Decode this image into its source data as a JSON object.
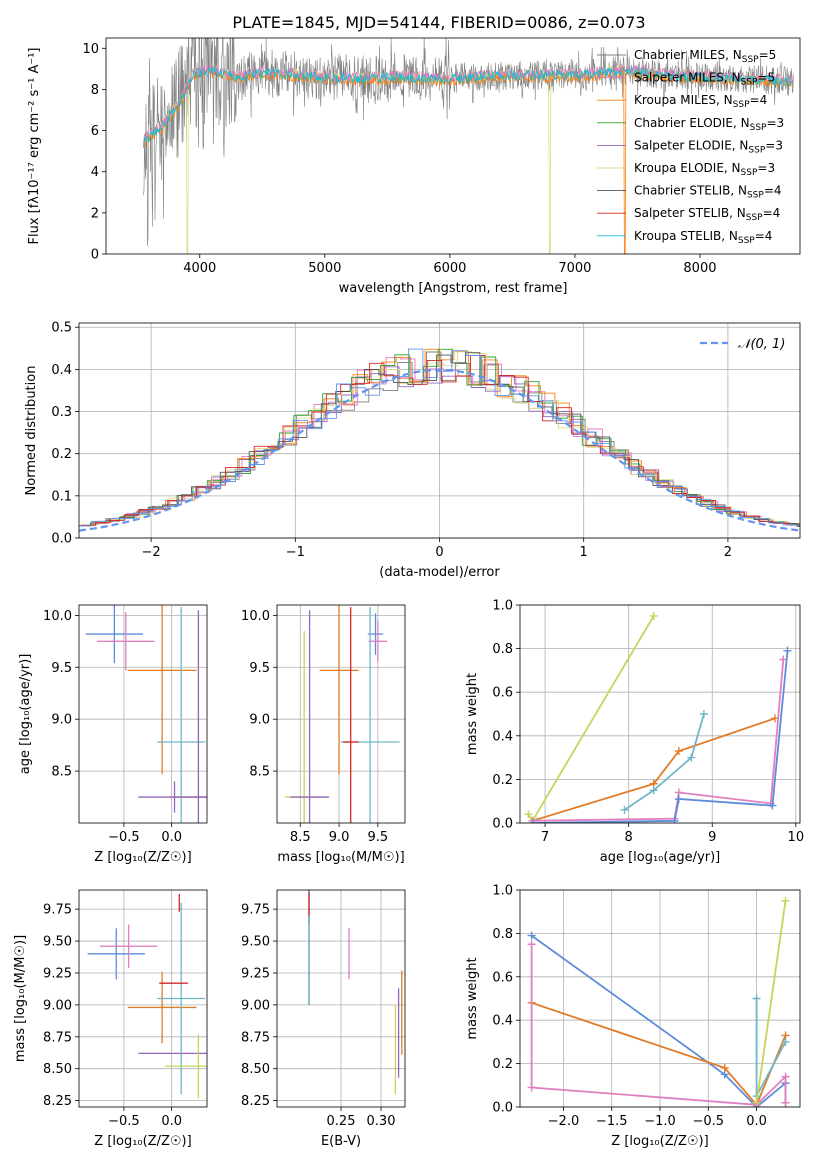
{
  "figure_title": "PLATE=1845, MJD=54144, FIBERID=0086, z=0.073",
  "colors": {
    "chabrier_miles": "#7f7f7f",
    "salpeter_miles": "#e377c2",
    "kroupa_miles": "#ff7f0e",
    "chabrier_elodie": "#2ca02c",
    "salpeter_elodie": "#9467bd",
    "kroupa_elodie": "#dbdb8d",
    "chabrier_stelib": "#555555",
    "salpeter_stelib": "#d62728",
    "kroupa_stelib": "#17becf",
    "normal_curve": "#6495ed",
    "weight_blue": "#5b8ddb",
    "weight_orange": "#e07b28",
    "weight_pink": "#e080c0",
    "weight_teal": "#6fb6c9",
    "weight_yellow": "#c8d35a"
  },
  "chart_data": [
    {
      "id": "spectrum",
      "type": "line",
      "title": "PLATE=1845, MJD=54144, FIBERID=0086, z=0.073",
      "xlabel": "wavelength [Angstrom, rest frame]",
      "ylabel": "Flux [fλ10⁻¹⁷ erg cm⁻² s⁻¹ A⁻¹]",
      "xlim": [
        3250,
        8800
      ],
      "ylim": [
        0,
        10.5
      ],
      "xticks": [
        "4000",
        "5000",
        "6000",
        "7000",
        "8000"
      ],
      "yticks": [
        "0",
        "2",
        "4",
        "6",
        "8",
        "10"
      ],
      "grid": false,
      "legend_position": "right",
      "legend": [
        {
          "label": "Chabrier MILES, N",
          "sub": "SSP",
          "suffix": "=5",
          "color_key": "chabrier_miles"
        },
        {
          "label": "Salpeter MILES, N",
          "sub": "SSP",
          "suffix": "=5",
          "color_key": "salpeter_miles"
        },
        {
          "label": "Kroupa MILES, N",
          "sub": "SSP",
          "suffix": "=4",
          "color_key": "kroupa_miles"
        },
        {
          "label": "Chabrier ELODIE, N",
          "sub": "SSP",
          "suffix": "=3",
          "color_key": "chabrier_elodie"
        },
        {
          "label": "Salpeter ELODIE, N",
          "sub": "SSP",
          "suffix": "=3",
          "color_key": "salpeter_elodie"
        },
        {
          "label": "Kroupa ELODIE, N",
          "sub": "SSP",
          "suffix": "=3",
          "color_key": "kroupa_elodie"
        },
        {
          "label": "Chabrier STELIB, N",
          "sub": "SSP",
          "suffix": "=4",
          "color_key": "chabrier_stelib"
        },
        {
          "label": "Salpeter STELIB, N",
          "sub": "SSP",
          "suffix": "=4",
          "color_key": "salpeter_stelib"
        },
        {
          "label": "Kroupa STELIB, N",
          "sub": "SSP",
          "suffix": "=4",
          "color_key": "kroupa_stelib"
        }
      ],
      "model_continuum": {
        "x": [
          3550,
          3700,
          3850,
          3950,
          4100,
          4300,
          4500,
          4800,
          5000,
          5300,
          5600,
          5900,
          6200,
          6500,
          6800,
          7100,
          7300,
          7450,
          7700,
          8000,
          8400,
          8750
        ],
        "y": [
          5.5,
          6.2,
          7.5,
          8.8,
          8.9,
          8.6,
          8.8,
          8.7,
          8.6,
          8.5,
          8.6,
          8.5,
          8.6,
          8.7,
          8.7,
          8.7,
          8.9,
          8.9,
          8.7,
          8.6,
          8.5,
          8.4
        ]
      },
      "data_range": [
        3550,
        8750
      ],
      "data_noise_amplitude": 1.2
    },
    {
      "id": "residual_hist",
      "type": "line",
      "xlabel": "(data-model)/error",
      "ylabel": "Normed distribution",
      "xlim": [
        -2.5,
        2.5
      ],
      "ylim": [
        0,
        0.51
      ],
      "xticks": [
        "−2",
        "−1",
        "0",
        "1",
        "2"
      ],
      "yticks": [
        "0.0",
        "0.1",
        "0.2",
        "0.3",
        "0.4",
        "0.5"
      ],
      "grid": true,
      "legend_position": "top-right",
      "legend": [
        {
          "label": "𝒩(0, 1)",
          "color_key": "normal_curve",
          "style": "dashed"
        }
      ],
      "bin_width": 0.1,
      "series": [
        {
          "color_key": "chabrier_miles",
          "offset": 0.01
        },
        {
          "color_key": "salpeter_miles",
          "offset": 0.03
        },
        {
          "color_key": "kroupa_miles",
          "offset": 0.0
        },
        {
          "color_key": "chabrier_elodie",
          "offset": -0.01
        },
        {
          "color_key": "salpeter_elodie",
          "offset": 0.02
        },
        {
          "color_key": "kroupa_elodie",
          "offset": 0.025
        },
        {
          "color_key": "chabrier_stelib",
          "offset": -0.02
        },
        {
          "color_key": "salpeter_stelib",
          "offset": 0.015
        },
        {
          "color_key": "normal_curve",
          "offset": -0.015
        }
      ]
    },
    {
      "id": "age_vs_Z",
      "type": "scatter",
      "xlabel": "Z [log₁₀(Z/Z☉)]",
      "ylabel": "age  [log₁₀(age/yr)]",
      "xlim": [
        -0.97,
        0.37
      ],
      "ylim": [
        8.0,
        10.1
      ],
      "xticks": [
        {
          "v": -0.5,
          "t": "−0.5"
        },
        {
          "v": 0.0,
          "t": "0.0"
        }
      ],
      "yticks": [
        {
          "v": 8.5,
          "t": "8.5"
        },
        {
          "v": 9.0,
          "t": "9.0"
        },
        {
          "v": 9.5,
          "t": "9.5"
        },
        {
          "v": 10.0,
          "t": "10.0"
        }
      ],
      "grid": true,
      "points": [
        {
          "x": -0.6,
          "y": 9.82,
          "xerr": 0.3,
          "yerr": 0.28,
          "color_key": "weight_blue"
        },
        {
          "x": -0.48,
          "y": 9.75,
          "xerr": 0.3,
          "yerr": 0.28,
          "color_key": "weight_pink"
        },
        {
          "x": -0.1,
          "y": 9.47,
          "xerr": 0.36,
          "yerr": 1.0,
          "color_key": "weight_orange"
        },
        {
          "x": 0.1,
          "y": 8.78,
          "xerr": 0.25,
          "yerr": 1.3,
          "color_key": "weight_teal"
        },
        {
          "x": 0.03,
          "y": 8.25,
          "xerr": 0.38,
          "yerr": 0.15,
          "color_key": "salpeter_elodie"
        },
        {
          "x": 0.28,
          "y": 8.25,
          "xerr": 0.3,
          "yerr": 1.6,
          "color_key": "weight_yellow"
        },
        {
          "x": 0.28,
          "y": 8.25,
          "xerr": 0.3,
          "yerr": 1.8,
          "color_key": "salpeter_elodie"
        }
      ]
    },
    {
      "id": "age_vs_mass",
      "type": "scatter",
      "xlabel": "mass [log₁₀(M/M☉)]",
      "ylabel": "",
      "xlim": [
        8.2,
        9.85
      ],
      "ylim": [
        8.0,
        10.1
      ],
      "xticks": [
        {
          "v": 8.5,
          "t": "8.5"
        },
        {
          "v": 9.0,
          "t": "9.0"
        },
        {
          "v": 9.5,
          "t": "9.5"
        }
      ],
      "yticks": [
        {
          "v": 8.5,
          "t": "8.5"
        },
        {
          "v": 9.0,
          "t": "9.0"
        },
        {
          "v": 9.5,
          "t": "9.5"
        },
        {
          "v": 10.0,
          "t": "10.0"
        }
      ],
      "grid": true,
      "points": [
        {
          "x": 9.47,
          "y": 9.82,
          "xerr": 0.1,
          "yerr": 0.2,
          "color_key": "weight_blue"
        },
        {
          "x": 9.5,
          "y": 9.75,
          "xerr": 0.12,
          "yerr": 0.2,
          "color_key": "weight_pink"
        },
        {
          "x": 9.0,
          "y": 9.47,
          "xerr": 0.25,
          "yerr": 1.0,
          "color_key": "weight_orange"
        },
        {
          "x": 9.4,
          "y": 8.78,
          "xerr": 0.38,
          "yerr": 1.3,
          "color_key": "weight_teal"
        },
        {
          "x": 8.55,
          "y": 8.25,
          "xerr": 0.25,
          "yerr": 1.6,
          "color_key": "weight_yellow"
        },
        {
          "x": 8.62,
          "y": 8.25,
          "xerr": 0.25,
          "yerr": 1.8,
          "color_key": "salpeter_elodie"
        },
        {
          "x": 9.15,
          "y": 8.78,
          "xerr": 0.1,
          "yerr": 1.3,
          "color_key": "salpeter_stelib"
        }
      ]
    },
    {
      "id": "weight_vs_age",
      "type": "line",
      "xlabel": "age  [log₁₀(age/yr)]",
      "ylabel": "mass weight",
      "xlim": [
        6.7,
        10.05
      ],
      "ylim": [
        0,
        1.0
      ],
      "xticks": [
        {
          "v": 7,
          "t": "7"
        },
        {
          "v": 8,
          "t": "8"
        },
        {
          "v": 9,
          "t": "9"
        },
        {
          "v": 10,
          "t": "10"
        }
      ],
      "yticks": [
        {
          "v": 0.0,
          "t": "0.0"
        },
        {
          "v": 0.2,
          "t": "0.2"
        },
        {
          "v": 0.4,
          "t": "0.4"
        },
        {
          "v": 0.6,
          "t": "0.6"
        },
        {
          "v": 0.8,
          "t": "0.8"
        },
        {
          "v": 1.0,
          "t": "1.0"
        }
      ],
      "grid": true,
      "series": [
        {
          "color_key": "weight_yellow",
          "x": [
            6.8,
            6.85,
            8.3
          ],
          "y": [
            0.04,
            0.01,
            0.95
          ]
        },
        {
          "color_key": "weight_orange",
          "x": [
            6.85,
            8.3,
            8.6,
            9.75
          ],
          "y": [
            0.01,
            0.18,
            0.33,
            0.48
          ]
        },
        {
          "color_key": "weight_teal",
          "x": [
            7.95,
            8.3,
            8.75,
            8.9
          ],
          "y": [
            0.06,
            0.15,
            0.3,
            0.5
          ]
        },
        {
          "color_key": "weight_pink",
          "x": [
            6.85,
            8.55,
            8.6,
            9.7,
            9.85
          ],
          "y": [
            0.01,
            0.02,
            0.14,
            0.09,
            0.75
          ]
        },
        {
          "color_key": "weight_blue",
          "x": [
            6.85,
            8.55,
            8.6,
            9.72,
            9.9
          ],
          "y": [
            0.0,
            0.01,
            0.11,
            0.08,
            0.79
          ]
        }
      ]
    },
    {
      "id": "mass_vs_Z",
      "type": "scatter",
      "xlabel": "Z [log₁₀(Z/Z☉)]",
      "ylabel": "mass [log₁₀(M/M☉)]",
      "xlim": [
        -0.97,
        0.37
      ],
      "ylim": [
        8.2,
        9.9
      ],
      "xticks": [
        {
          "v": -0.5,
          "t": "−0.5"
        },
        {
          "v": 0.0,
          "t": "0.0"
        }
      ],
      "yticks": [
        {
          "v": 8.25,
          "t": "8.25"
        },
        {
          "v": 8.5,
          "t": "8.50"
        },
        {
          "v": 8.75,
          "t": "8.75"
        },
        {
          "v": 9.0,
          "t": "9.00"
        },
        {
          "v": 9.25,
          "t": "9.25"
        },
        {
          "v": 9.5,
          "t": "9.50"
        },
        {
          "v": 9.75,
          "t": "9.75"
        }
      ],
      "grid": true,
      "points": [
        {
          "x": -0.58,
          "y": 9.4,
          "xerr": 0.3,
          "yerr": 0.2,
          "color_key": "weight_blue"
        },
        {
          "x": -0.45,
          "y": 9.46,
          "xerr": 0.3,
          "yerr": 0.17,
          "color_key": "weight_pink"
        },
        {
          "x": -0.1,
          "y": 8.98,
          "xerr": 0.36,
          "yerr": 0.28,
          "color_key": "weight_orange"
        },
        {
          "x": 0.1,
          "y": 9.05,
          "xerr": 0.25,
          "yerr": 0.75,
          "color_key": "weight_teal"
        },
        {
          "x": 0.02,
          "y": 9.17,
          "xerr": 0.15,
          "yerr": 0.0,
          "color_key": "salpeter_stelib"
        },
        {
          "x": 0.03,
          "y": 8.62,
          "xerr": 0.38,
          "yerr": 0.0,
          "color_key": "salpeter_elodie"
        },
        {
          "x": 0.28,
          "y": 8.52,
          "xerr": 0.35,
          "yerr": 0.25,
          "color_key": "weight_yellow"
        },
        {
          "x": 0.08,
          "y": 9.8,
          "xerr": 0.0,
          "yerr": 0.07,
          "color_key": "salpeter_stelib"
        }
      ]
    },
    {
      "id": "mass_vs_ebv",
      "type": "scatter",
      "xlabel": "E(B-V)",
      "ylabel": "",
      "xlim": [
        0.17,
        0.33
      ],
      "ylim": [
        8.2,
        9.9
      ],
      "xticks": [
        {
          "v": 0.25,
          "t": "0.25"
        },
        {
          "v": 0.3,
          "t": "0.30"
        }
      ],
      "yticks": [
        {
          "v": 8.25,
          "t": "8.25"
        },
        {
          "v": 8.5,
          "t": "8.50"
        },
        {
          "v": 8.75,
          "t": "8.75"
        },
        {
          "v": 9.0,
          "t": "9.00"
        },
        {
          "v": 9.25,
          "t": "9.25"
        },
        {
          "v": 9.5,
          "t": "9.50"
        },
        {
          "v": 9.75,
          "t": "9.75"
        }
      ],
      "grid": true,
      "points": [
        {
          "x": 0.21,
          "y": 9.45,
          "xerr": 0.0,
          "yerr": 0.45,
          "color_key": "chabrier_stelib"
        },
        {
          "x": 0.21,
          "y": 9.75,
          "xerr": 0.0,
          "yerr": 0.12,
          "color_key": "salpeter_stelib"
        },
        {
          "x": 0.21,
          "y": 9.35,
          "xerr": 0.0,
          "yerr": 0.35,
          "color_key": "weight_teal"
        },
        {
          "x": 0.26,
          "y": 9.4,
          "xerr": 0.0,
          "yerr": 0.2,
          "color_key": "weight_pink"
        },
        {
          "x": 0.318,
          "y": 8.65,
          "xerr": 0.0,
          "yerr": 0.35,
          "color_key": "weight_yellow"
        },
        {
          "x": 0.322,
          "y": 8.78,
          "xerr": 0.0,
          "yerr": 0.35,
          "color_key": "salpeter_elodie"
        },
        {
          "x": 0.326,
          "y": 8.94,
          "xerr": 0.0,
          "yerr": 0.33,
          "color_key": "weight_orange"
        }
      ]
    },
    {
      "id": "weight_vs_Z",
      "type": "line",
      "xlabel": "Z [log₁₀(Z/Z☉)]",
      "ylabel": "mass weight",
      "xlim": [
        -2.45,
        0.45
      ],
      "ylim": [
        0,
        1.0
      ],
      "xticks": [
        {
          "v": -2.0,
          "t": "−2.0"
        },
        {
          "v": -1.5,
          "t": "−1.5"
        },
        {
          "v": -1.0,
          "t": "−1.0"
        },
        {
          "v": -0.5,
          "t": "−0.5"
        },
        {
          "v": 0.0,
          "t": "0.0"
        }
      ],
      "yticks": [
        {
          "v": 0.0,
          "t": "0.0"
        },
        {
          "v": 0.2,
          "t": "0.2"
        },
        {
          "v": 0.4,
          "t": "0.4"
        },
        {
          "v": 0.6,
          "t": "0.6"
        },
        {
          "v": 0.8,
          "t": "0.8"
        },
        {
          "v": 1.0,
          "t": "1.0"
        }
      ],
      "grid": true,
      "series": [
        {
          "color_key": "weight_blue",
          "x": [
            -2.33,
            -0.33,
            0.0,
            0.3,
            0.3
          ],
          "y": [
            0.79,
            0.15,
            0.0,
            0.11,
            0.02
          ]
        },
        {
          "color_key": "weight_orange",
          "x": [
            -2.33,
            -0.33,
            0.0,
            0.3
          ],
          "y": [
            0.48,
            0.18,
            0.01,
            0.33
          ]
        },
        {
          "color_key": "weight_pink",
          "x": [
            -2.33,
            -2.33,
            0.0,
            0.3,
            0.3
          ],
          "y": [
            0.75,
            0.09,
            0.01,
            0.14,
            0.02
          ]
        },
        {
          "color_key": "weight_teal",
          "x": [
            0.0,
            0.0,
            0.3
          ],
          "y": [
            0.5,
            0.05,
            0.3
          ]
        },
        {
          "color_key": "weight_yellow",
          "x": [
            0.0,
            0.3
          ],
          "y": [
            0.02,
            0.95
          ]
        }
      ]
    }
  ]
}
